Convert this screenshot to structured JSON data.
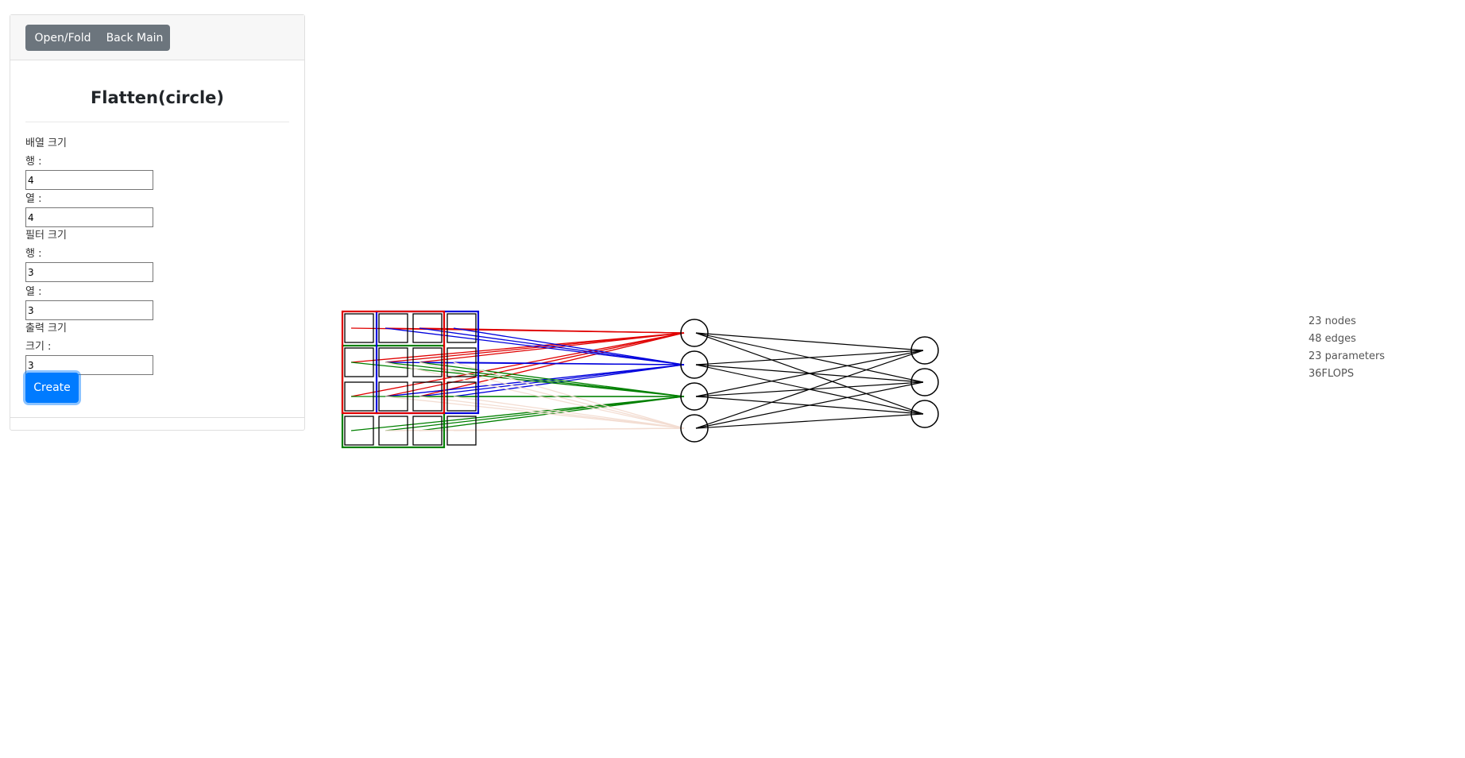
{
  "header": {
    "open_fold_label": "Open/Fold",
    "back_main_label": "Back Main"
  },
  "form": {
    "title": "Flatten(circle)",
    "array_size_label": "배열 크기",
    "row_label": "행 :",
    "col_label": "열 :",
    "filter_size_label": "필터 크기",
    "filter_row_label": "행 :",
    "filter_col_label": "열 :",
    "output_size_label": "출력 크기",
    "output_label": "크기 :",
    "array_rows": "4",
    "array_cols": "4",
    "filter_rows": "3",
    "filter_cols": "3",
    "output_size": "3",
    "create_label": "Create"
  },
  "stats": {
    "nodes": "23 nodes",
    "edges": "48 edges",
    "parameters": "23 parameters",
    "flops": "36FLOPS"
  },
  "network": {
    "input_grid": [
      4,
      4
    ],
    "filter_grid": [
      3,
      3
    ],
    "hidden_nodes": 4,
    "output_nodes": 3,
    "filter_colors": [
      "#e00000",
      "#0000dd",
      "#008000",
      "#f3ddd2"
    ],
    "edge_color": "#000000"
  }
}
